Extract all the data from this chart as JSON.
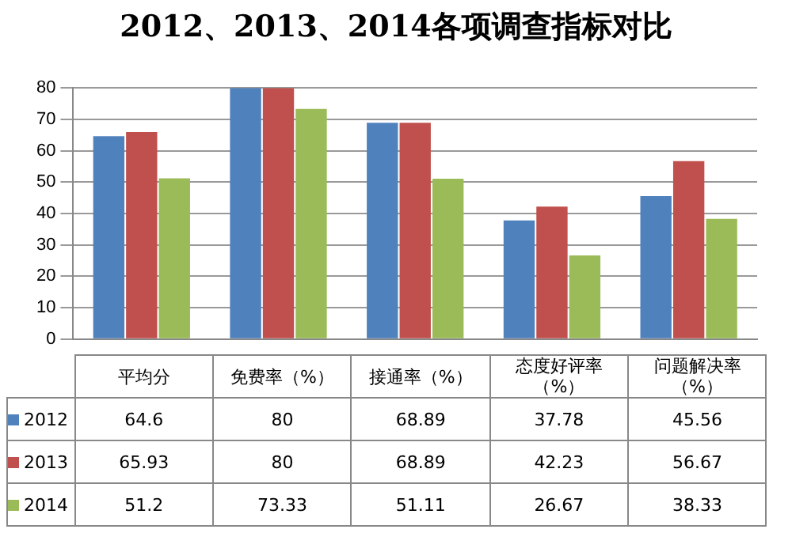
{
  "chart_data": {
    "type": "bar",
    "title": "2012、2013、2014各项调查指标对比",
    "categories": [
      "平均分",
      "免费率（%）",
      "接通率（%）",
      "态度好评率（%）",
      "问题解决率（%）"
    ],
    "series": [
      {
        "name": "2012",
        "color": "#4f81bd",
        "values": [
          64.6,
          80,
          68.89,
          37.78,
          45.56
        ]
      },
      {
        "name": "2013",
        "color": "#c0504d",
        "values": [
          65.93,
          80,
          68.89,
          42.23,
          56.67
        ]
      },
      {
        "name": "2014",
        "color": "#9bbb59",
        "values": [
          51.2,
          73.33,
          51.11,
          26.67,
          38.33
        ]
      }
    ],
    "ylim": [
      0,
      80
    ],
    "yticks": [
      0,
      10,
      20,
      30,
      40,
      50,
      60,
      70,
      80
    ],
    "grid": "y",
    "legend": "bottom left",
    "data_labels": true
  }
}
